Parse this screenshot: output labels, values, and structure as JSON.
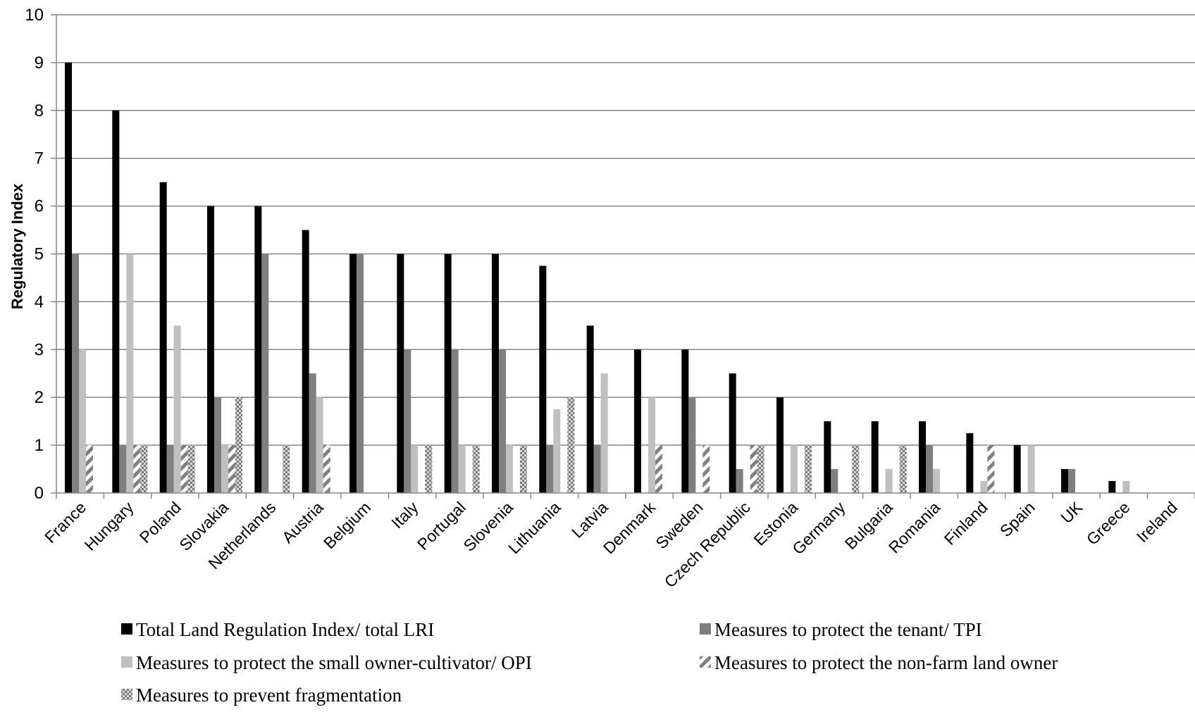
{
  "chart_data": {
    "type": "bar",
    "title": "",
    "xlabel": "",
    "ylabel": "Regulatory Index",
    "ylim": [
      0,
      10
    ],
    "yticks": [
      "0",
      "1",
      "2",
      "3",
      "4",
      "5",
      "6",
      "7",
      "8",
      "9",
      "10"
    ],
    "grid": true,
    "legend_position": "bottom",
    "categories": [
      "France",
      "Hungary",
      "Poland",
      "Slovakia",
      "Netherlands",
      "Austria",
      "Belgium",
      "Italy",
      "Portugal",
      "Slovenia",
      "Lithuania",
      "Latvia",
      "Denmark",
      "Sweden",
      "Czech Republic",
      "Estonia",
      "Germany",
      "Bulgaria",
      "Romania",
      "Finland",
      "Spain",
      "UK",
      "Greece",
      "Ireland"
    ],
    "series": [
      {
        "name": "Total Land Regulation Index/ total LRI",
        "fill": "solid",
        "color": "#000000",
        "values": [
          9,
          8,
          6.5,
          6,
          6,
          5.5,
          5,
          5,
          5,
          5,
          4.75,
          3.5,
          3,
          3,
          2.5,
          2,
          1.5,
          1.5,
          1.5,
          1.25,
          1,
          0.5,
          0.25,
          0
        ]
      },
      {
        "name": "Measures to protect the tenant/ TPI",
        "fill": "solid",
        "color": "#7f7f7f",
        "values": [
          5,
          1,
          1,
          2,
          5,
          2.5,
          5,
          3,
          3,
          3,
          1,
          1,
          0,
          2,
          0.5,
          0,
          0.5,
          0,
          1,
          0,
          0,
          0.5,
          0,
          0
        ]
      },
      {
        "name": "Measures to protect the small owner-cultivator/ OPI",
        "fill": "solid",
        "color": "#c0c0c0",
        "values": [
          3,
          5,
          3.5,
          1,
          0,
          2,
          0,
          1,
          1,
          1,
          1.75,
          2.5,
          2,
          0,
          0,
          1,
          0,
          0.5,
          0.5,
          0.25,
          1,
          0,
          0.25,
          0
        ]
      },
      {
        "name": "Measures to protect the non-farm land owner",
        "fill": "diagonal",
        "color": "#808080",
        "values": [
          1,
          1,
          1,
          1,
          0,
          1,
          0,
          0,
          0,
          0,
          0,
          0,
          1,
          1,
          1,
          0,
          0,
          0,
          0,
          1,
          0,
          0,
          0,
          0
        ]
      },
      {
        "name": "Measures to prevent fragmentation",
        "fill": "checker",
        "color": "#808080",
        "values": [
          0,
          1,
          1,
          2,
          1,
          0,
          0,
          1,
          1,
          1,
          2,
          0,
          0,
          0,
          1,
          1,
          1,
          1,
          0,
          0,
          0,
          0,
          0,
          0
        ]
      }
    ]
  }
}
